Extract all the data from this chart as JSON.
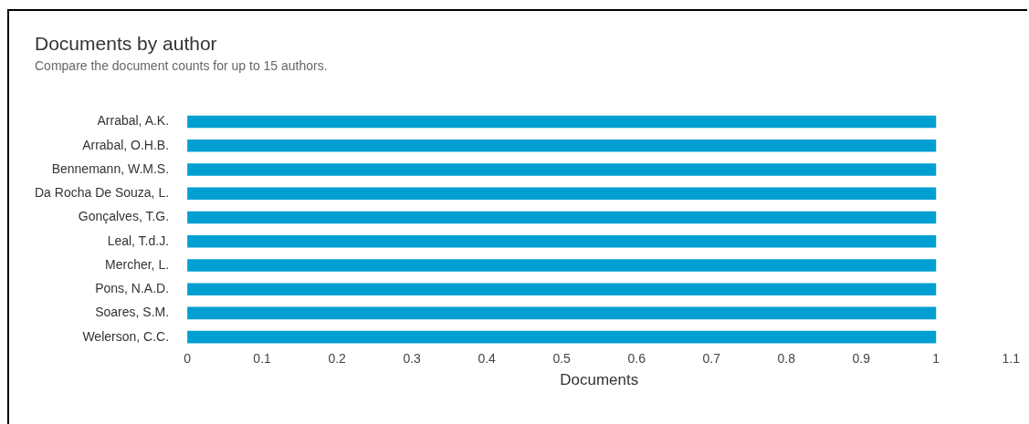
{
  "chart_data": {
    "type": "bar",
    "orientation": "horizontal",
    "title": "Documents by author",
    "subtitle": "Compare the document counts for up to 15 authors.",
    "categories": [
      "Arrabal, A.K.",
      "Arrabal, O.H.B.",
      "Bennemann, W.M.S.",
      "Da Rocha De Souza, L.",
      "Gonçalves, T.G.",
      "Leal, T.d.J.",
      "Mercher, L.",
      "Pons, N.A.D.",
      "Soares, S.M.",
      "Welerson, C.C."
    ],
    "values": [
      1,
      1,
      1,
      1,
      1,
      1,
      1,
      1,
      1,
      1
    ],
    "color": "#009fd1",
    "xlabel": "Documents",
    "xlim": [
      0,
      1.1
    ],
    "xticks": [
      0,
      0.1,
      0.2,
      0.3,
      0.4,
      0.5,
      0.6,
      0.7,
      0.8,
      0.9,
      1,
      1.1
    ]
  }
}
